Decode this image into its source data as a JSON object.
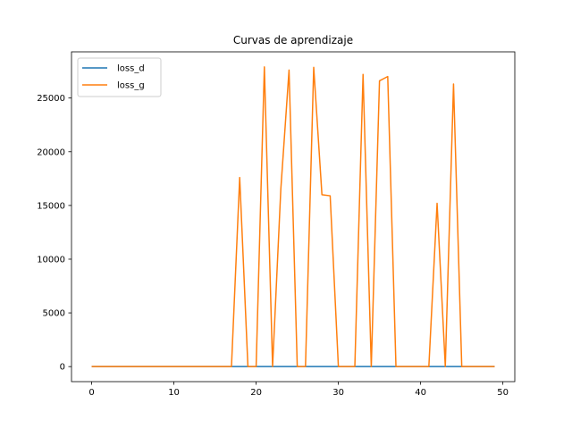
{
  "chart_data": {
    "type": "line",
    "title": "Curvas de aprendizaje",
    "xlabel": "",
    "ylabel": "",
    "xlim": [
      -2.45,
      51.45
    ],
    "ylim": [
      -1400,
      29300
    ],
    "xticks": [
      0,
      10,
      20,
      30,
      40,
      50
    ],
    "yticks": [
      0,
      5000,
      10000,
      15000,
      20000,
      25000
    ],
    "grid": false,
    "legend_position": "top-left",
    "x": [
      0,
      1,
      2,
      3,
      4,
      5,
      6,
      7,
      8,
      9,
      10,
      11,
      12,
      13,
      14,
      15,
      16,
      17,
      18,
      19,
      20,
      21,
      22,
      23,
      24,
      25,
      26,
      27,
      28,
      29,
      30,
      31,
      32,
      33,
      34,
      35,
      36,
      37,
      38,
      39,
      40,
      41,
      42,
      43,
      44,
      45,
      46,
      47,
      48,
      49
    ],
    "series": [
      {
        "name": "loss_d",
        "color": "#1f77b4",
        "values": [
          0,
          0,
          0,
          0,
          0,
          0,
          0,
          0,
          0,
          0,
          0,
          0,
          0,
          0,
          0,
          0,
          0,
          0,
          0,
          0,
          0,
          0,
          0,
          0,
          0,
          0,
          0,
          0,
          0,
          0,
          0,
          0,
          0,
          0,
          0,
          0,
          0,
          0,
          0,
          0,
          0,
          0,
          0,
          0,
          0,
          0,
          0,
          0,
          0,
          0
        ]
      },
      {
        "name": "loss_g",
        "color": "#ff7f0e",
        "values": [
          0,
          0,
          0,
          0,
          0,
          0,
          0,
          0,
          0,
          0,
          0,
          0,
          0,
          0,
          0,
          0,
          0,
          0,
          17600,
          0,
          0,
          27900,
          0,
          16500,
          27600,
          0,
          0,
          27850,
          16000,
          15900,
          0,
          0,
          0,
          27200,
          0,
          26600,
          27000,
          0,
          0,
          0,
          0,
          0,
          15200,
          0,
          26300,
          0,
          0,
          0,
          0,
          0
        ]
      }
    ]
  }
}
